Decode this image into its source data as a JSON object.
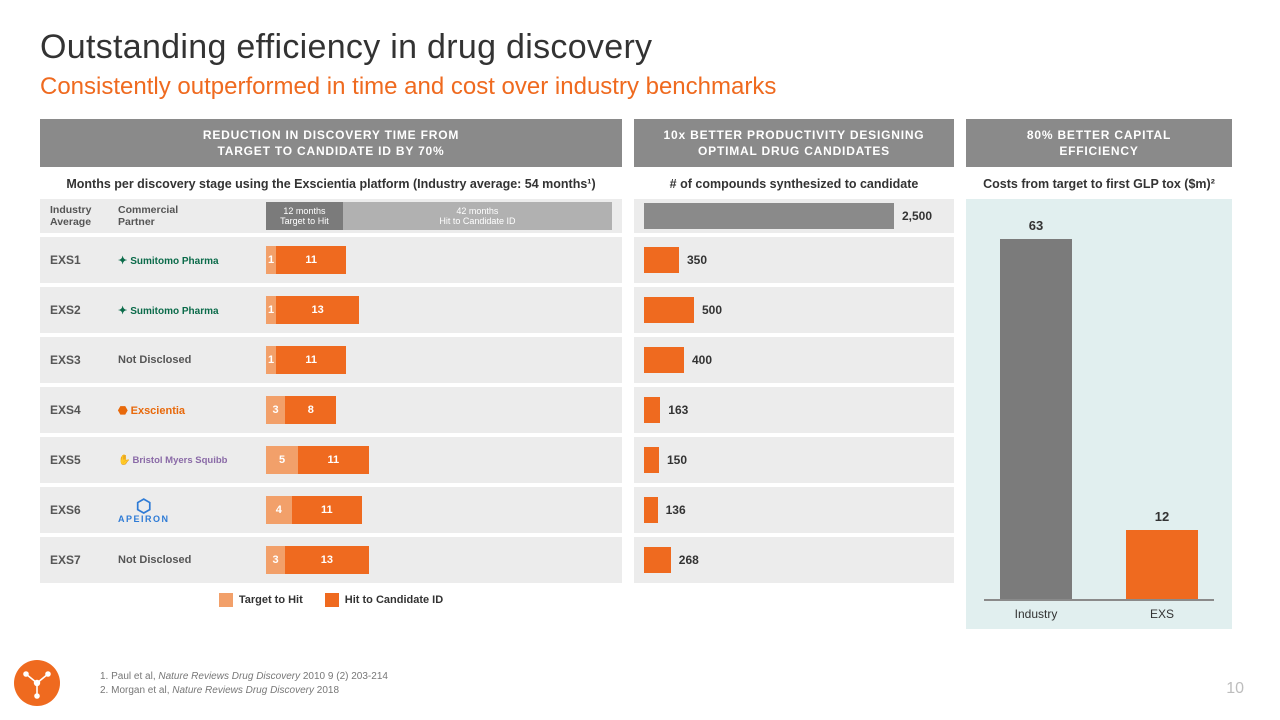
{
  "colors": {
    "accent_orange": "#ef6a1f",
    "accent_orange_light": "#f2a06a",
    "header_grey": "#8a8a8a",
    "row_grey": "#ececec",
    "ind_grey_dark": "#7b7b7b",
    "ind_grey_light": "#b1b1b1",
    "teal_bg": "#e1efef",
    "text_dark": "#333333",
    "subtitle_orange": "#ef6a1f"
  },
  "title": "Outstanding efficiency in drug discovery",
  "subtitle": "Consistently outperformed in time and cost over industry benchmarks",
  "page_number": "10",
  "footnotes": [
    "1. Paul et al, Nature Reviews Drug Discovery 2010 9 (2) 203-214",
    "2. Morgan et al, Nature Reviews Drug Discovery 2018"
  ],
  "left": {
    "header": "REDUCTION IN DISCOVERY TIME FROM\nTARGET TO CANDIDATE ID BY 70%",
    "sub": "Months per discovery stage using the Exscientia platform (Industry average: 54 months¹)",
    "col_id": "Industry\nAverage",
    "col_partner": "Commercial\nPartner",
    "x_max_months": 54,
    "industry_segments": [
      {
        "label_top": "12 months",
        "label_bottom": "Target to Hit",
        "months": 12,
        "color": "#7b7b7b"
      },
      {
        "label_top": "42 months",
        "label_bottom": "Hit to Candidate ID",
        "months": 42,
        "color": "#b1b1b1"
      }
    ],
    "rows": [
      {
        "id": "EXS1",
        "partner_type": "sumitomo",
        "partner_label": "Sumitomo Pharma",
        "seg1": 1,
        "seg2": 11
      },
      {
        "id": "EXS2",
        "partner_type": "sumitomo",
        "partner_label": "Sumitomo Pharma",
        "seg1": 1,
        "seg2": 13
      },
      {
        "id": "EXS3",
        "partner_type": "text",
        "partner_label": "Not Disclosed",
        "seg1": 1,
        "seg2": 11
      },
      {
        "id": "EXS4",
        "partner_type": "exs",
        "partner_label": "Exscientia",
        "seg1": 3,
        "seg2": 8
      },
      {
        "id": "EXS5",
        "partner_type": "bms",
        "partner_label": "Bristol Myers Squibb",
        "seg1": 5,
        "seg2": 11
      },
      {
        "id": "EXS6",
        "partner_type": "apeiron",
        "partner_label": "APEIRON",
        "seg1": 4,
        "seg2": 11
      },
      {
        "id": "EXS7",
        "partner_type": "text",
        "partner_label": "Not Disclosed",
        "seg1": 3,
        "seg2": 13
      }
    ],
    "legend": {
      "seg1": "Target to Hit",
      "seg2": "Hit to Candidate ID"
    }
  },
  "mid": {
    "header": "10x BETTER PRODUCTIVITY DESIGNING\nOPTIMAL DRUG CANDIDATES",
    "sub": "# of compounds synthesized to candidate",
    "x_max": 2500,
    "industry_value": 2500,
    "industry_color": "#8a8a8a",
    "bar_color": "#ef6a1f",
    "rows": [
      {
        "value": 350
      },
      {
        "value": 500
      },
      {
        "value": 400
      },
      {
        "value": 163
      },
      {
        "value": 150
      },
      {
        "value": 136
      },
      {
        "value": 268
      }
    ]
  },
  "right": {
    "header": "80% BETTER CAPITAL\nEFFICIENCY",
    "sub": "Costs from target to first GLP tox ($m)²",
    "y_max": 63,
    "bars": [
      {
        "label": "Industry",
        "value": 63,
        "color": "#7b7b7b"
      },
      {
        "label": "EXS",
        "value": 12,
        "color": "#ef6a1f"
      }
    ]
  }
}
